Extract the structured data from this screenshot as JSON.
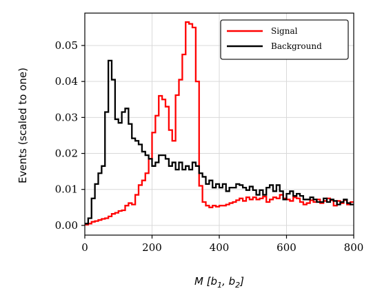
{
  "chart_data": {
    "type": "line",
    "step": true,
    "title": "",
    "xlabel": "M [b1, b2]",
    "ylabel": "Events (scaled to one)",
    "xlim": [
      0,
      800
    ],
    "ylim": [
      -0.0027,
      0.059
    ],
    "xticks": [
      0,
      200,
      400,
      600,
      800
    ],
    "xtick_labels": [
      "0",
      "200",
      "400",
      "600",
      "800"
    ],
    "yticks": [
      0.0,
      0.01,
      0.02,
      0.03,
      0.04,
      0.05
    ],
    "ytick_labels": [
      "0.00",
      "0.01",
      "0.02",
      "0.03",
      "0.04",
      "0.05"
    ],
    "grid": true,
    "legend_position": "top-right",
    "bin_width": 10,
    "series": [
      {
        "name": "Signal",
        "color": "#ff0000",
        "x_edges_start": 0,
        "values": [
          0.0002,
          0.0005,
          0.001,
          0.0012,
          0.0015,
          0.0018,
          0.002,
          0.0025,
          0.0032,
          0.0035,
          0.004,
          0.0042,
          0.0055,
          0.0062,
          0.0058,
          0.0085,
          0.0112,
          0.0125,
          0.0145,
          0.0185,
          0.0258,
          0.0305,
          0.036,
          0.035,
          0.033,
          0.0265,
          0.0235,
          0.0362,
          0.0405,
          0.0475,
          0.0565,
          0.056,
          0.055,
          0.04,
          0.011,
          0.0065,
          0.0055,
          0.005,
          0.0055,
          0.0052,
          0.0055,
          0.0055,
          0.0058,
          0.0062,
          0.0065,
          0.007,
          0.0075,
          0.0068,
          0.0078,
          0.0072,
          0.0078,
          0.0072,
          0.0075,
          0.008,
          0.0065,
          0.0072,
          0.0078,
          0.0075,
          0.0085,
          0.0075,
          0.0072,
          0.0068,
          0.0078,
          0.0075,
          0.0065,
          0.0058,
          0.0062,
          0.007,
          0.0065,
          0.0072,
          0.0062,
          0.0068,
          0.0075,
          0.007,
          0.0055,
          0.0068,
          0.0062,
          0.007,
          0.0058,
          0.0065
        ]
      },
      {
        "name": "Background",
        "color": "#000000",
        "x_edges_start": 0,
        "values": [
          0.0005,
          0.002,
          0.0075,
          0.0115,
          0.0145,
          0.0165,
          0.0315,
          0.0458,
          0.0405,
          0.0295,
          0.0285,
          0.0315,
          0.0325,
          0.0282,
          0.0242,
          0.0235,
          0.0225,
          0.0205,
          0.0195,
          0.0185,
          0.0165,
          0.0175,
          0.0195,
          0.0195,
          0.0185,
          0.0165,
          0.0175,
          0.0155,
          0.0175,
          0.0155,
          0.0165,
          0.0155,
          0.0175,
          0.0165,
          0.0145,
          0.0135,
          0.0115,
          0.0125,
          0.0105,
          0.0115,
          0.0105,
          0.0115,
          0.0095,
          0.0105,
          0.0105,
          0.0115,
          0.0112,
          0.0105,
          0.0098,
          0.0108,
          0.0098,
          0.0085,
          0.0098,
          0.0085,
          0.0105,
          0.0112,
          0.0095,
          0.0112,
          0.0095,
          0.0072,
          0.0088,
          0.0095,
          0.0082,
          0.0088,
          0.0082,
          0.0072,
          0.0072,
          0.0078,
          0.0072,
          0.0065,
          0.0065,
          0.0075,
          0.0065,
          0.0072,
          0.0068,
          0.0058,
          0.0065,
          0.0072,
          0.0062,
          0.0058
        ]
      }
    ]
  }
}
